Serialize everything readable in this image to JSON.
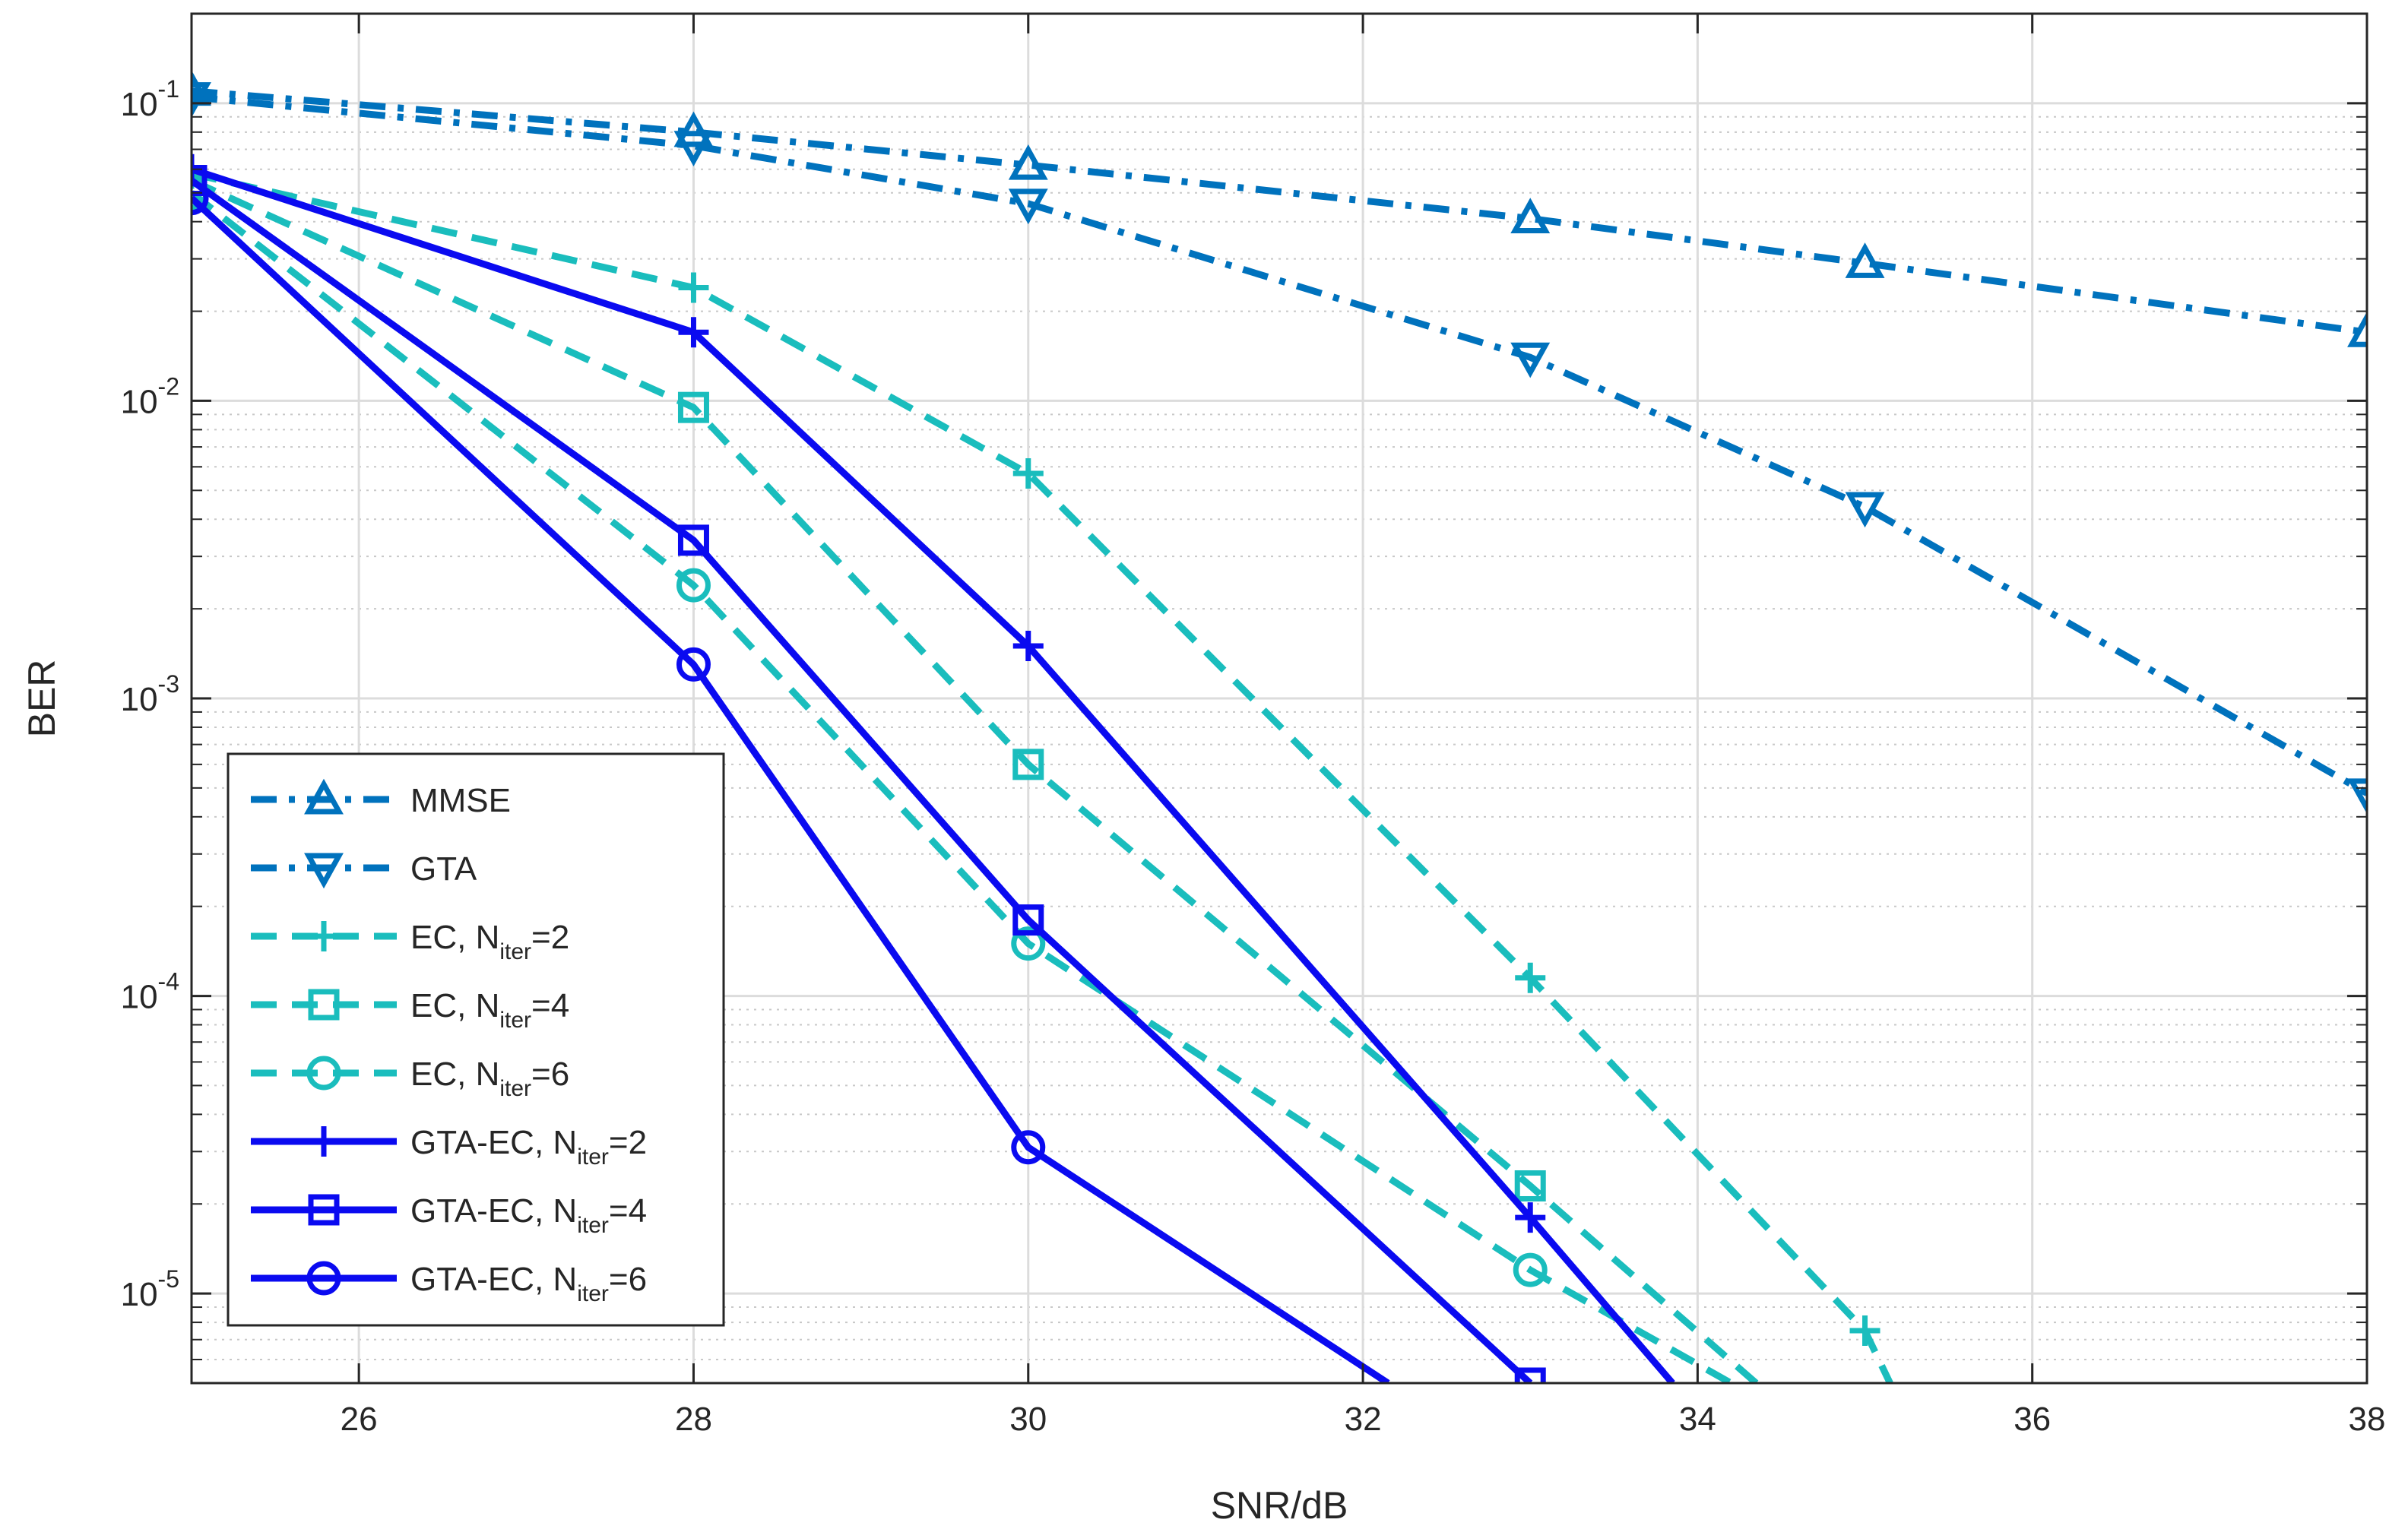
{
  "chart_data": {
    "type": "line",
    "xlabel": "SNR/dB",
    "ylabel": "BER",
    "xlim": [
      25,
      38
    ],
    "ylim": [
      5e-06,
      0.2
    ],
    "yscale": "log",
    "grid": true,
    "minor_grid": true,
    "legend_position": "bottom-left",
    "x_ticks": [
      26,
      28,
      30,
      32,
      34,
      36,
      38
    ],
    "x_tick_labels": [
      "26",
      "28",
      "30",
      "32",
      "34",
      "36",
      "38"
    ],
    "y_ticks": [
      0.1,
      0.01,
      0.001,
      0.0001,
      1e-05
    ],
    "y_tick_labels": [
      {
        "base": "10",
        "exp": "-1"
      },
      {
        "base": "10",
        "exp": "-2"
      },
      {
        "base": "10",
        "exp": "-3"
      },
      {
        "base": "10",
        "exp": "-4"
      },
      {
        "base": "10",
        "exp": "-5"
      }
    ],
    "series": [
      {
        "name": "MMSE",
        "label_main": "MMSE",
        "label_sub": "",
        "label_tail": "",
        "color": "#0072BD",
        "dash": "dashdot",
        "marker": "triangle-up",
        "x": [
          25,
          28,
          30,
          33,
          35,
          38
        ],
        "y": [
          0.11,
          0.08,
          0.062,
          0.041,
          0.029,
          0.017
        ]
      },
      {
        "name": "GTA",
        "label_main": "GTA",
        "label_sub": "",
        "label_tail": "",
        "color": "#0072BD",
        "dash": "dashdot",
        "marker": "triangle-down",
        "x": [
          25,
          28,
          30,
          33,
          35,
          38
        ],
        "y": [
          0.105,
          0.072,
          0.046,
          0.014,
          0.0044,
          0.00048
        ]
      },
      {
        "name": "EC, N_iter=2",
        "label_main": "EC, N",
        "label_sub": "iter",
        "label_tail": "=2",
        "color": "#1ABDBD",
        "dash": "dashed",
        "marker": "plus",
        "x": [
          25,
          28,
          30,
          33,
          35,
          35.15
        ],
        "y": [
          0.058,
          0.024,
          0.0057,
          0.000115,
          7.5e-06,
          5e-06
        ],
        "marker_x": [
          25,
          28,
          30,
          33,
          35
        ]
      },
      {
        "name": "EC, N_iter=4",
        "label_main": "EC, N",
        "label_sub": "iter",
        "label_tail": "=4",
        "color": "#1ABDBD",
        "dash": "dashed",
        "marker": "square",
        "x": [
          25,
          28,
          30,
          33,
          34.35
        ],
        "y": [
          0.055,
          0.0095,
          0.0006,
          2.3e-05,
          5e-06
        ],
        "marker_x": [
          25,
          28,
          30,
          33
        ]
      },
      {
        "name": "EC, N_iter=6",
        "label_main": "EC, N",
        "label_sub": "iter",
        "label_tail": "=6",
        "color": "#1ABDBD",
        "dash": "dashed",
        "marker": "circle",
        "x": [
          25,
          28,
          30,
          33,
          34.2
        ],
        "y": [
          0.05,
          0.0024,
          0.00015,
          1.2e-05,
          5e-06
        ],
        "marker_x": [
          25,
          28,
          30,
          33
        ]
      },
      {
        "name": "GTA-EC, N_iter=2",
        "label_main": "GTA-EC, N",
        "label_sub": "iter",
        "label_tail": "=2",
        "color": "#0A0AF0",
        "dash": "solid",
        "marker": "plus",
        "x": [
          25,
          28,
          30,
          33,
          33.85
        ],
        "y": [
          0.06,
          0.017,
          0.0015,
          1.8e-05,
          5e-06
        ],
        "marker_x": [
          25,
          28,
          30,
          33
        ]
      },
      {
        "name": "GTA-EC, N_iter=4",
        "label_main": "GTA-EC, N",
        "label_sub": "iter",
        "label_tail": "=4",
        "color": "#0A0AF0",
        "dash": "solid",
        "marker": "square",
        "x": [
          25,
          28,
          30,
          33
        ],
        "y": [
          0.055,
          0.0034,
          0.00018,
          5e-06
        ],
        "marker_x": [
          25,
          28,
          30,
          33
        ]
      },
      {
        "name": "GTA-EC, N_iter=6",
        "label_main": "GTA-EC, N",
        "label_sub": "iter",
        "label_tail": "=6",
        "color": "#0A0AF0",
        "dash": "solid",
        "marker": "circle",
        "x": [
          25,
          28,
          30,
          32.15
        ],
        "y": [
          0.048,
          0.0013,
          3.1e-05,
          5e-06
        ],
        "marker_x": [
          25,
          28,
          30
        ]
      }
    ]
  }
}
